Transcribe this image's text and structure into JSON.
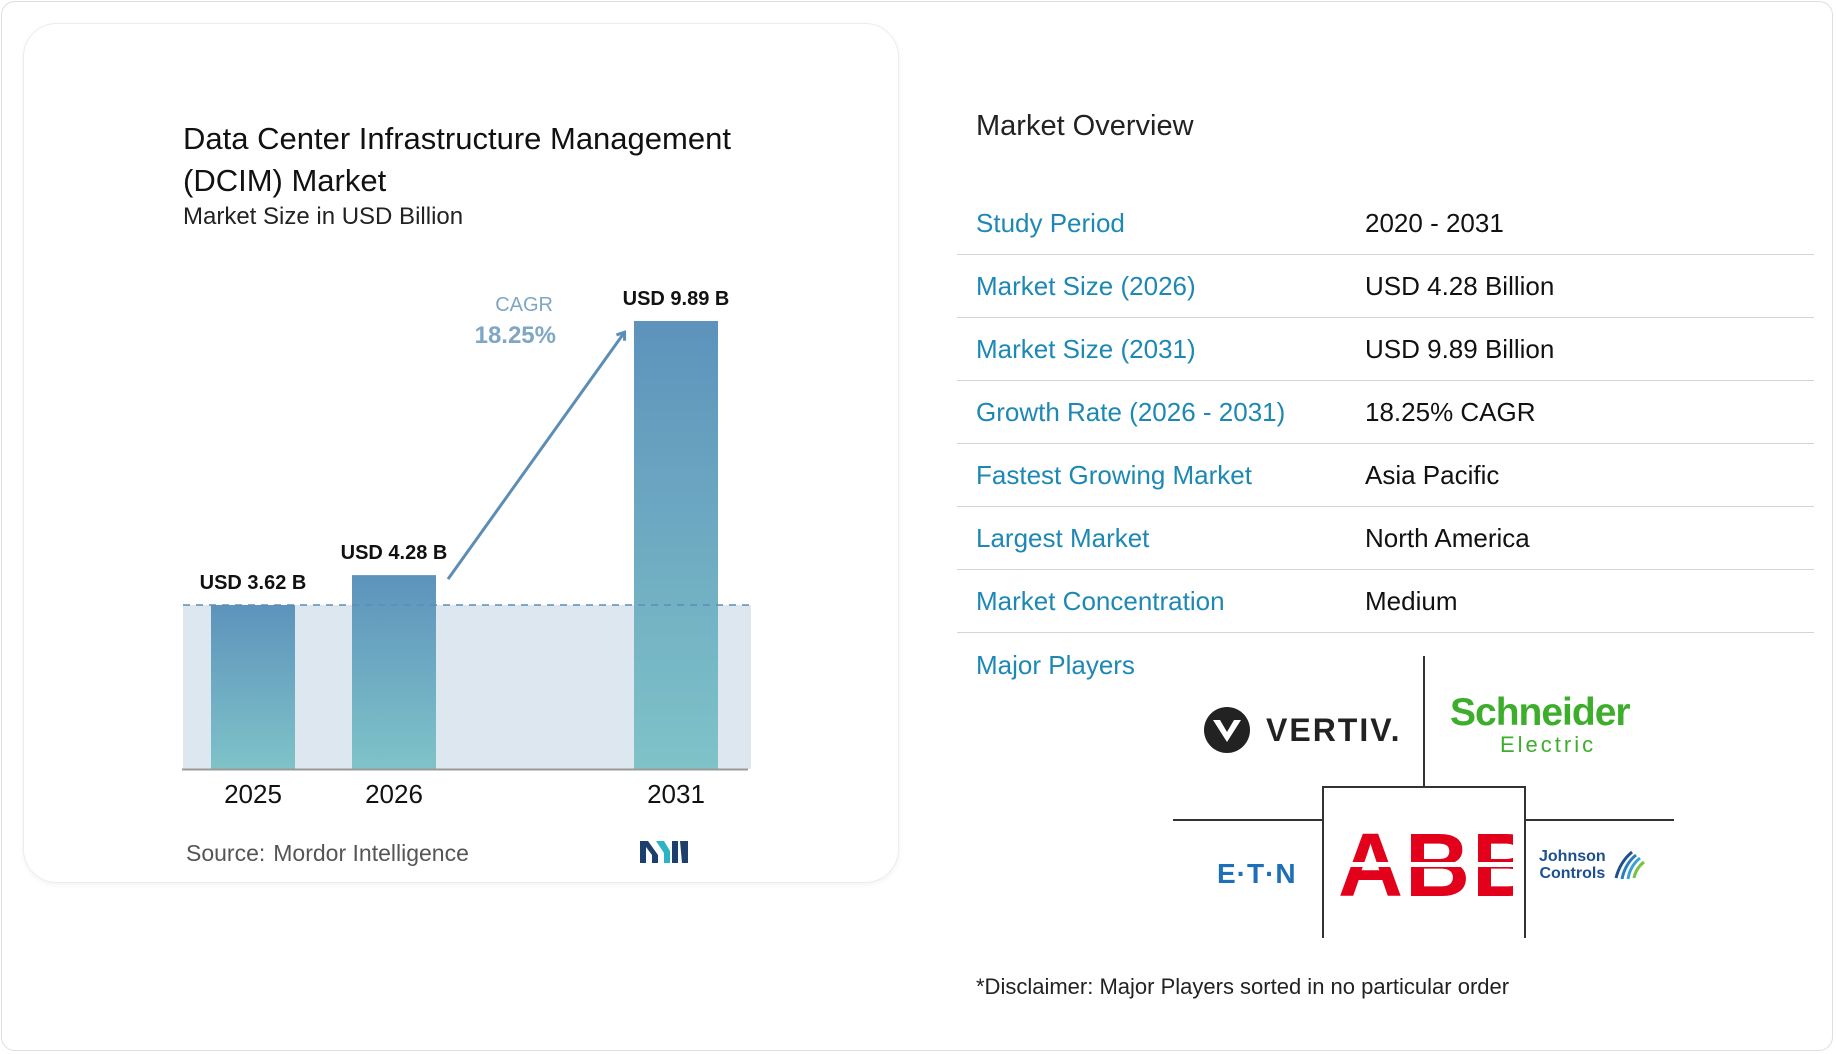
{
  "chart_data": {
    "type": "bar",
    "title": "Data Center Infrastructure Management (DCIM) Market",
    "subtitle": "Market Size in USD Billion",
    "categories": [
      "2025",
      "2026",
      "2031"
    ],
    "values": [
      3.62,
      4.28,
      9.89
    ],
    "data_labels": [
      "USD 3.62 B",
      "USD 4.28 B",
      "USD 9.89 B"
    ],
    "cagr_label": "CAGR",
    "cagr_value": "18.25%",
    "ylim": [
      0,
      9.89
    ],
    "colors": {
      "bar_top": "#5d93bc",
      "bar_bottom": "#7fc3c8",
      "arrow": "#5b8db5",
      "band": "#dde7f0"
    }
  },
  "source": {
    "label": "Source:",
    "name": "Mordor Intelligence"
  },
  "overview": {
    "title": "Market Overview",
    "rows": [
      {
        "label": "Study Period",
        "value": "2020 - 2031"
      },
      {
        "label": "Market Size (2026)",
        "value": "USD 4.28 Billion"
      },
      {
        "label": "Market Size (2031)",
        "value": "USD 9.89 Billion"
      },
      {
        "label": "Growth Rate (2026 - 2031)",
        "value": "18.25% CAGR"
      },
      {
        "label": "Fastest Growing Market",
        "value": "Asia Pacific"
      },
      {
        "label": "Largest Market",
        "value": "North America"
      },
      {
        "label": "Market Concentration",
        "value": "Medium"
      }
    ]
  },
  "players": {
    "label": "Major Players",
    "logos": {
      "vertiv": "VERTIV.",
      "schneider_top": "Schneider",
      "schneider_bottom": "Electric",
      "abb": "ABB",
      "eaton": "E·T·N",
      "johnson_top": "Johnson",
      "johnson_bottom": "Controls"
    },
    "disclaimer": "*Disclaimer: Major Players sorted in no particular order"
  }
}
